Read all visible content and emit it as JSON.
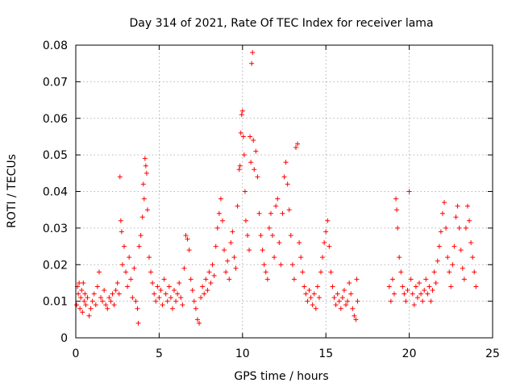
{
  "chart_data": {
    "type": "scatter",
    "title": "Day 314 of 2021, Rate Of TEC Index for receiver lama",
    "xlabel": "GPS time / hours",
    "ylabel": "ROTI / TECUs",
    "xlim": [
      0,
      25
    ],
    "ylim": [
      0,
      0.08
    ],
    "xticks": [
      "0",
      "5",
      "10",
      "15",
      "20",
      "25"
    ],
    "yticks": [
      "0",
      "0.01",
      "0.02",
      "0.03",
      "0.04",
      "0.05",
      "0.06",
      "0.07",
      "0.08"
    ],
    "grid": true,
    "legend": "none",
    "marker": "+",
    "color": "#ff0000",
    "series": [
      {
        "points": [
          [
            0.05,
            0.009
          ],
          [
            0.1,
            0.014
          ],
          [
            0.15,
            0.012
          ],
          [
            0.2,
            0.015
          ],
          [
            0.25,
            0.008
          ],
          [
            0.3,
            0.011
          ],
          [
            0.35,
            0.013
          ],
          [
            0.4,
            0.007
          ],
          [
            0.45,
            0.015
          ],
          [
            0.5,
            0.01
          ],
          [
            0.55,
            0.012
          ],
          [
            0.6,
            0.009
          ],
          [
            0.7,
            0.011
          ],
          [
            0.8,
            0.006
          ],
          [
            0.9,
            0.008
          ],
          [
            1.0,
            0.01
          ],
          [
            1.1,
            0.012
          ],
          [
            1.2,
            0.009
          ],
          [
            1.3,
            0.014
          ],
          [
            1.4,
            0.018
          ],
          [
            1.5,
            0.011
          ],
          [
            1.6,
            0.01
          ],
          [
            1.7,
            0.013
          ],
          [
            1.8,
            0.009
          ],
          [
            1.9,
            0.008
          ],
          [
            2.0,
            0.011
          ],
          [
            2.1,
            0.01
          ],
          [
            2.2,
            0.012
          ],
          [
            2.3,
            0.009
          ],
          [
            2.4,
            0.013
          ],
          [
            2.5,
            0.015
          ],
          [
            2.6,
            0.012
          ],
          [
            2.65,
            0.044
          ],
          [
            2.7,
            0.032
          ],
          [
            2.75,
            0.029
          ],
          [
            2.8,
            0.02
          ],
          [
            2.9,
            0.025
          ],
          [
            3.0,
            0.018
          ],
          [
            3.1,
            0.014
          ],
          [
            3.2,
            0.022
          ],
          [
            3.3,
            0.016
          ],
          [
            3.4,
            0.011
          ],
          [
            3.5,
            0.019
          ],
          [
            3.6,
            0.01
          ],
          [
            3.7,
            0.008
          ],
          [
            3.75,
            0.004
          ],
          [
            3.8,
            0.025
          ],
          [
            3.9,
            0.028
          ],
          [
            4.0,
            0.033
          ],
          [
            4.05,
            0.042
          ],
          [
            4.1,
            0.038
          ],
          [
            4.15,
            0.049
          ],
          [
            4.2,
            0.047
          ],
          [
            4.25,
            0.045
          ],
          [
            4.3,
            0.035
          ],
          [
            4.4,
            0.022
          ],
          [
            4.5,
            0.018
          ],
          [
            4.6,
            0.015
          ],
          [
            4.7,
            0.012
          ],
          [
            4.8,
            0.01
          ],
          [
            4.9,
            0.014
          ],
          [
            5.0,
            0.011
          ],
          [
            5.1,
            0.013
          ],
          [
            5.2,
            0.009
          ],
          [
            5.3,
            0.016
          ],
          [
            5.4,
            0.012
          ],
          [
            5.5,
            0.01
          ],
          [
            5.6,
            0.014
          ],
          [
            5.7,
            0.011
          ],
          [
            5.8,
            0.008
          ],
          [
            5.9,
            0.013
          ],
          [
            6.0,
            0.01
          ],
          [
            6.1,
            0.012
          ],
          [
            6.2,
            0.015
          ],
          [
            6.3,
            0.011
          ],
          [
            6.4,
            0.009
          ],
          [
            6.5,
            0.019
          ],
          [
            6.6,
            0.028
          ],
          [
            6.7,
            0.027
          ],
          [
            6.8,
            0.024
          ],
          [
            6.9,
            0.016
          ],
          [
            7.0,
            0.013
          ],
          [
            7.1,
            0.01
          ],
          [
            7.2,
            0.008
          ],
          [
            7.3,
            0.005
          ],
          [
            7.4,
            0.004
          ],
          [
            7.5,
            0.011
          ],
          [
            7.6,
            0.014
          ],
          [
            7.7,
            0.012
          ],
          [
            7.8,
            0.016
          ],
          [
            7.9,
            0.013
          ],
          [
            8.0,
            0.018
          ],
          [
            8.1,
            0.015
          ],
          [
            8.2,
            0.02
          ],
          [
            8.3,
            0.017
          ],
          [
            8.4,
            0.025
          ],
          [
            8.5,
            0.03
          ],
          [
            8.6,
            0.034
          ],
          [
            8.7,
            0.038
          ],
          [
            8.8,
            0.032
          ],
          [
            8.9,
            0.024
          ],
          [
            9.0,
            0.018
          ],
          [
            9.1,
            0.021
          ],
          [
            9.2,
            0.016
          ],
          [
            9.3,
            0.026
          ],
          [
            9.4,
            0.029
          ],
          [
            9.5,
            0.022
          ],
          [
            9.6,
            0.019
          ],
          [
            9.7,
            0.036
          ],
          [
            9.8,
            0.046
          ],
          [
            9.85,
            0.047
          ],
          [
            9.9,
            0.056
          ],
          [
            9.95,
            0.061
          ],
          [
            10.0,
            0.062
          ],
          [
            10.05,
            0.055
          ],
          [
            10.1,
            0.05
          ],
          [
            10.15,
            0.04
          ],
          [
            10.2,
            0.032
          ],
          [
            10.3,
            0.028
          ],
          [
            10.4,
            0.024
          ],
          [
            10.45,
            0.055
          ],
          [
            10.5,
            0.048
          ],
          [
            10.55,
            0.075
          ],
          [
            10.6,
            0.078
          ],
          [
            10.65,
            0.054
          ],
          [
            10.7,
            0.046
          ],
          [
            10.8,
            0.051
          ],
          [
            10.9,
            0.044
          ],
          [
            11.0,
            0.034
          ],
          [
            11.1,
            0.028
          ],
          [
            11.2,
            0.024
          ],
          [
            11.3,
            0.02
          ],
          [
            11.4,
            0.018
          ],
          [
            11.5,
            0.016
          ],
          [
            11.6,
            0.03
          ],
          [
            11.7,
            0.034
          ],
          [
            11.8,
            0.028
          ],
          [
            11.9,
            0.022
          ],
          [
            12.0,
            0.036
          ],
          [
            12.1,
            0.038
          ],
          [
            12.2,
            0.026
          ],
          [
            12.3,
            0.02
          ],
          [
            12.4,
            0.034
          ],
          [
            12.5,
            0.044
          ],
          [
            12.6,
            0.048
          ],
          [
            12.7,
            0.042
          ],
          [
            12.8,
            0.035
          ],
          [
            12.9,
            0.028
          ],
          [
            13.0,
            0.02
          ],
          [
            13.1,
            0.016
          ],
          [
            13.2,
            0.052
          ],
          [
            13.3,
            0.053
          ],
          [
            13.4,
            0.026
          ],
          [
            13.5,
            0.022
          ],
          [
            13.6,
            0.018
          ],
          [
            13.7,
            0.014
          ],
          [
            13.8,
            0.012
          ],
          [
            13.9,
            0.01
          ],
          [
            14.0,
            0.013
          ],
          [
            14.1,
            0.011
          ],
          [
            14.2,
            0.009
          ],
          [
            14.3,
            0.012
          ],
          [
            14.4,
            0.008
          ],
          [
            14.5,
            0.014
          ],
          [
            14.6,
            0.011
          ],
          [
            14.7,
            0.018
          ],
          [
            14.8,
            0.022
          ],
          [
            14.9,
            0.026
          ],
          [
            15.0,
            0.029
          ],
          [
            15.1,
            0.032
          ],
          [
            15.2,
            0.025
          ],
          [
            15.3,
            0.018
          ],
          [
            15.4,
            0.014
          ],
          [
            15.5,
            0.011
          ],
          [
            15.6,
            0.009
          ],
          [
            15.7,
            0.012
          ],
          [
            15.8,
            0.01
          ],
          [
            15.9,
            0.008
          ],
          [
            16.0,
            0.011
          ],
          [
            16.1,
            0.013
          ],
          [
            16.2,
            0.009
          ],
          [
            16.3,
            0.01
          ],
          [
            16.4,
            0.015
          ],
          [
            16.5,
            0.012
          ],
          [
            16.6,
            0.008
          ],
          [
            16.7,
            0.006
          ],
          [
            16.8,
            0.005
          ],
          [
            16.85,
            0.016
          ],
          [
            16.9,
            0.01
          ],
          [
            18.8,
            0.014
          ],
          [
            18.9,
            0.01
          ],
          [
            19.0,
            0.016
          ],
          [
            19.1,
            0.012
          ],
          [
            19.2,
            0.038
          ],
          [
            19.25,
            0.035
          ],
          [
            19.3,
            0.03
          ],
          [
            19.4,
            0.022
          ],
          [
            19.5,
            0.018
          ],
          [
            19.6,
            0.014
          ],
          [
            19.7,
            0.012
          ],
          [
            19.8,
            0.01
          ],
          [
            19.9,
            0.013
          ],
          [
            20.0,
            0.04
          ],
          [
            20.1,
            0.016
          ],
          [
            20.2,
            0.012
          ],
          [
            20.3,
            0.009
          ],
          [
            20.4,
            0.014
          ],
          [
            20.5,
            0.011
          ],
          [
            20.6,
            0.015
          ],
          [
            20.7,
            0.012
          ],
          [
            20.8,
            0.01
          ],
          [
            20.9,
            0.013
          ],
          [
            21.0,
            0.016
          ],
          [
            21.1,
            0.012
          ],
          [
            21.2,
            0.014
          ],
          [
            21.3,
            0.01
          ],
          [
            21.4,
            0.013
          ],
          [
            21.5,
            0.018
          ],
          [
            21.6,
            0.015
          ],
          [
            21.7,
            0.021
          ],
          [
            21.8,
            0.025
          ],
          [
            21.9,
            0.029
          ],
          [
            22.0,
            0.034
          ],
          [
            22.1,
            0.037
          ],
          [
            22.2,
            0.03
          ],
          [
            22.3,
            0.022
          ],
          [
            22.4,
            0.018
          ],
          [
            22.5,
            0.014
          ],
          [
            22.6,
            0.02
          ],
          [
            22.7,
            0.025
          ],
          [
            22.8,
            0.033
          ],
          [
            22.9,
            0.036
          ],
          [
            23.0,
            0.03
          ],
          [
            23.1,
            0.024
          ],
          [
            23.2,
            0.019
          ],
          [
            23.3,
            0.016
          ],
          [
            23.4,
            0.03
          ],
          [
            23.5,
            0.036
          ],
          [
            23.6,
            0.032
          ],
          [
            23.7,
            0.026
          ],
          [
            23.8,
            0.022
          ],
          [
            23.9,
            0.018
          ],
          [
            24.0,
            0.014
          ]
        ]
      }
    ]
  }
}
